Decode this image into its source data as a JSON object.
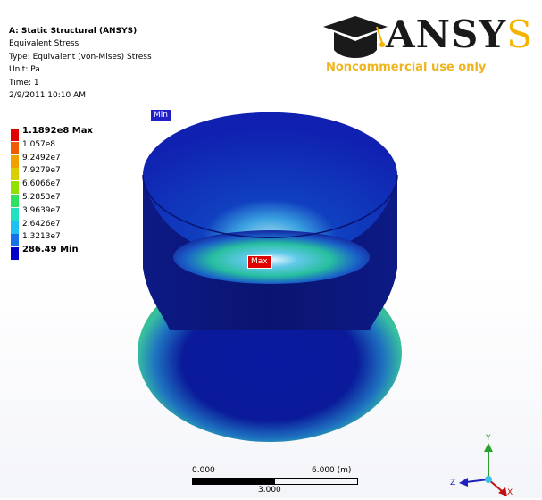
{
  "info": {
    "title": "A: Static Structural (ANSYS)",
    "result": "Equivalent Stress",
    "type": "Type: Equivalent (von-Mises) Stress",
    "unit": "Unit: Pa",
    "time": "Time: 1",
    "date": "2/9/2011 10:10 AM"
  },
  "logo": {
    "brand_prefix": "ANSY",
    "brand_suffix": "S",
    "subtitle": "Noncommercial use only"
  },
  "legend": [
    {
      "label": "1.1892e8 Max",
      "color": "#e00000",
      "bold": true
    },
    {
      "label": "1.057e8",
      "color": "#f05a00"
    },
    {
      "label": "9.2492e7",
      "color": "#f0a000"
    },
    {
      "label": "7.9279e7",
      "color": "#d8d000"
    },
    {
      "label": "6.6066e7",
      "color": "#90e000"
    },
    {
      "label": "5.2853e7",
      "color": "#30e060"
    },
    {
      "label": "3.9639e7",
      "color": "#20e0c0"
    },
    {
      "label": "2.6426e7",
      "color": "#20c0f0"
    },
    {
      "label": "1.3213e7",
      "color": "#1a70e8"
    },
    {
      "label": "286.49 Min",
      "color": "#0000c8",
      "bold": true
    }
  ],
  "probes": {
    "min": "Min",
    "max": "Max"
  },
  "scale": {
    "left": "0.000",
    "right": "6.000 (m)",
    "mid": "3.000"
  },
  "triad": {
    "x": "X",
    "y": "Y",
    "z": "Z"
  }
}
